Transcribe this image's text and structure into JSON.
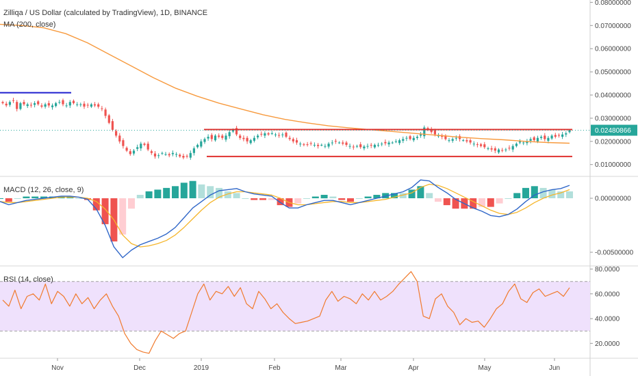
{
  "chart_data": [
    {
      "type": "candlestick",
      "title": "Zilliqa / US Dollar (calculated by TradingView), 1D, BINANCE",
      "indicator_label": "MA (200, close)",
      "y_ticks": [
        "0.08000000",
        "0.07000000",
        "0.06000000",
        "0.05000000",
        "0.04000000",
        "0.03000000",
        "0.02000000",
        "0.01000000"
      ],
      "ylim": [
        0.0055,
        0.081
      ],
      "last_price": "0.02480866",
      "price_axis_color": "#26a69a",
      "candle_colors": {
        "up": "#26a69a",
        "down": "#ef5350"
      },
      "ma_color": "#f79a3e",
      "candles_close": [
        0.0365,
        0.0355,
        0.037,
        0.0375,
        0.034,
        0.0365,
        0.036,
        0.036,
        0.0355,
        0.0365,
        0.036,
        0.035,
        0.036,
        0.0355,
        0.0355,
        0.0365,
        0.037,
        0.036,
        0.0355,
        0.037,
        0.0365,
        0.036,
        0.036,
        0.035,
        0.0355,
        0.036,
        0.0355,
        0.035,
        0.034,
        0.031,
        0.028,
        0.025,
        0.0225,
        0.02,
        0.018,
        0.016,
        0.0145,
        0.016,
        0.0175,
        0.019,
        0.0185,
        0.0165,
        0.015,
        0.0135,
        0.014,
        0.015,
        0.0145,
        0.014,
        0.015,
        0.0145,
        0.0135,
        0.013,
        0.0135,
        0.015,
        0.017,
        0.0185,
        0.02,
        0.021,
        0.022,
        0.021,
        0.0225,
        0.022,
        0.0215,
        0.0225,
        0.024,
        0.025,
        0.023,
        0.0215,
        0.021,
        0.02,
        0.0205,
        0.0215,
        0.0225,
        0.023,
        0.0235,
        0.023,
        0.0235,
        0.023,
        0.0225,
        0.023,
        0.022,
        0.021,
        0.02,
        0.0195,
        0.019,
        0.0185,
        0.0185,
        0.019,
        0.0185,
        0.018,
        0.0185,
        0.018,
        0.019,
        0.0195,
        0.02,
        0.0195,
        0.019,
        0.0185,
        0.018,
        0.0175,
        0.018,
        0.0175,
        0.0178,
        0.018,
        0.0182,
        0.0185,
        0.0185,
        0.019,
        0.0192,
        0.0195,
        0.0195,
        0.02,
        0.0205,
        0.021,
        0.0215,
        0.021,
        0.0215,
        0.022,
        0.023,
        0.026,
        0.025,
        0.024,
        0.023,
        0.0225,
        0.022,
        0.021,
        0.0205,
        0.021,
        0.0215,
        0.021,
        0.0205,
        0.02,
        0.0195,
        0.019,
        0.0185,
        0.018,
        0.0175,
        0.017,
        0.0165,
        0.016,
        0.0165,
        0.016,
        0.0165,
        0.017,
        0.018,
        0.019,
        0.02,
        0.0195,
        0.02,
        0.021,
        0.0205,
        0.0215,
        0.022,
        0.021,
        0.0215,
        0.0225,
        0.022,
        0.0225,
        0.023,
        0.0235,
        0.0248
      ],
      "ma_200": [
        0.0705,
        0.07,
        0.069,
        0.0665,
        0.0625,
        0.0575,
        0.0525,
        0.0475,
        0.043,
        0.0395,
        0.0365,
        0.034,
        0.0315,
        0.0295,
        0.028,
        0.0267,
        0.0258,
        0.025,
        0.0242,
        0.0234,
        0.0226,
        0.0218,
        0.0212,
        0.0207,
        0.02,
        0.0195,
        0.0192
      ],
      "annotations": [
        {
          "kind": "horizontal-segment",
          "color": "#1e1ecf",
          "value": 0.041
        },
        {
          "kind": "horizontal-segment",
          "color": "#e0302e",
          "value": 0.0251
        },
        {
          "kind": "horizontal-segment",
          "color": "#e0302e",
          "value": 0.0135
        }
      ]
    },
    {
      "type": "histogram+line",
      "title": "MACD (12, 26, close, 9)",
      "y_ticks": [
        "0.00000000",
        "-0.00500000"
      ],
      "ylim": [
        -0.0062,
        0.0019
      ],
      "macd_color": "#2f66c8",
      "signal_color": "#f5b52a",
      "macd": [
        -0.0003,
        -0.0006,
        -0.0004,
        -0.0002,
        -0.0001,
        0.0,
        0.0001,
        0.0002,
        0.0002,
        0.0001,
        -0.0001,
        -0.001,
        -0.0025,
        -0.0045,
        -0.0055,
        -0.0048,
        -0.0043,
        -0.004,
        -0.0037,
        -0.0033,
        -0.0027,
        -0.0018,
        -0.0009,
        -0.0003,
        0.0003,
        0.0007,
        0.0008,
        0.0009,
        0.0006,
        0.0004,
        0.0003,
        0.0002,
        -0.0004,
        -0.0009,
        -0.0009,
        -0.0006,
        -0.0004,
        -0.0002,
        -0.0002,
        -0.0004,
        -0.0006,
        -0.0004,
        -0.0002,
        0.0,
        0.0002,
        0.0004,
        0.0006,
        0.001,
        0.0017,
        0.0016,
        0.001,
        0.0005,
        -0.0001,
        -0.0005,
        -0.0009,
        -0.0012,
        -0.0016,
        -0.0017,
        -0.0015,
        -0.001,
        -0.0003,
        0.0003,
        0.0006,
        0.0008,
        0.0009,
        0.0012
      ],
      "signal": [
        -0.0003,
        -0.0004,
        -0.0004,
        -0.0003,
        -0.0002,
        -0.0001,
        0.0,
        0.0001,
        0.0001,
        0.0001,
        0.0,
        -0.0003,
        -0.001,
        -0.002,
        -0.0034,
        -0.0042,
        -0.0045,
        -0.0044,
        -0.0042,
        -0.0039,
        -0.0034,
        -0.0027,
        -0.0019,
        -0.0011,
        -0.0004,
        0.0001,
        0.0004,
        0.0006,
        0.0006,
        0.0005,
        0.0004,
        0.0003,
        0.0,
        -0.0004,
        -0.0006,
        -0.0006,
        -0.0005,
        -0.0004,
        -0.0003,
        -0.0003,
        -0.0004,
        -0.0004,
        -0.0003,
        -0.0002,
        -0.0001,
        0.0001,
        0.0003,
        0.0005,
        0.001,
        0.0013,
        0.0012,
        0.0009,
        0.0005,
        0.0001,
        -0.0003,
        -0.0007,
        -0.0011,
        -0.0014,
        -0.0015,
        -0.0013,
        -0.0009,
        -0.0004,
        0.0,
        0.0003,
        0.0005,
        0.0008
      ]
    },
    {
      "type": "line",
      "title": "RSI (14, close)",
      "y_ticks": [
        "80.0000",
        "60.0000",
        "40.0000",
        "20.0000"
      ],
      "ylim": [
        8,
        82
      ],
      "band": [
        30,
        70
      ],
      "band_color": "#efe1fc",
      "line_color": "#f07a2c",
      "rsi": [
        55,
        50,
        63,
        48,
        58,
        60,
        55,
        68,
        52,
        62,
        58,
        50,
        60,
        52,
        57,
        48,
        55,
        60,
        50,
        42,
        28,
        20,
        15,
        13,
        12,
        22,
        30,
        27,
        24,
        28,
        30,
        45,
        60,
        68,
        55,
        62,
        60,
        66,
        58,
        65,
        52,
        48,
        62,
        56,
        48,
        52,
        45,
        40,
        36,
        37,
        38,
        40,
        42,
        55,
        62,
        54,
        58,
        56,
        52,
        60,
        55,
        62,
        55,
        58,
        62,
        68,
        73,
        78,
        70,
        42,
        40,
        56,
        60,
        50,
        45,
        35,
        40,
        37,
        38,
        33,
        40,
        48,
        52,
        62,
        68,
        56,
        53,
        61,
        64,
        58,
        60,
        62,
        58,
        65
      ]
    }
  ],
  "x_axis": {
    "labels": [
      "Nov",
      "Dec",
      "2019",
      "Feb",
      "Mar",
      "Apr",
      "May",
      "Jun"
    ]
  }
}
